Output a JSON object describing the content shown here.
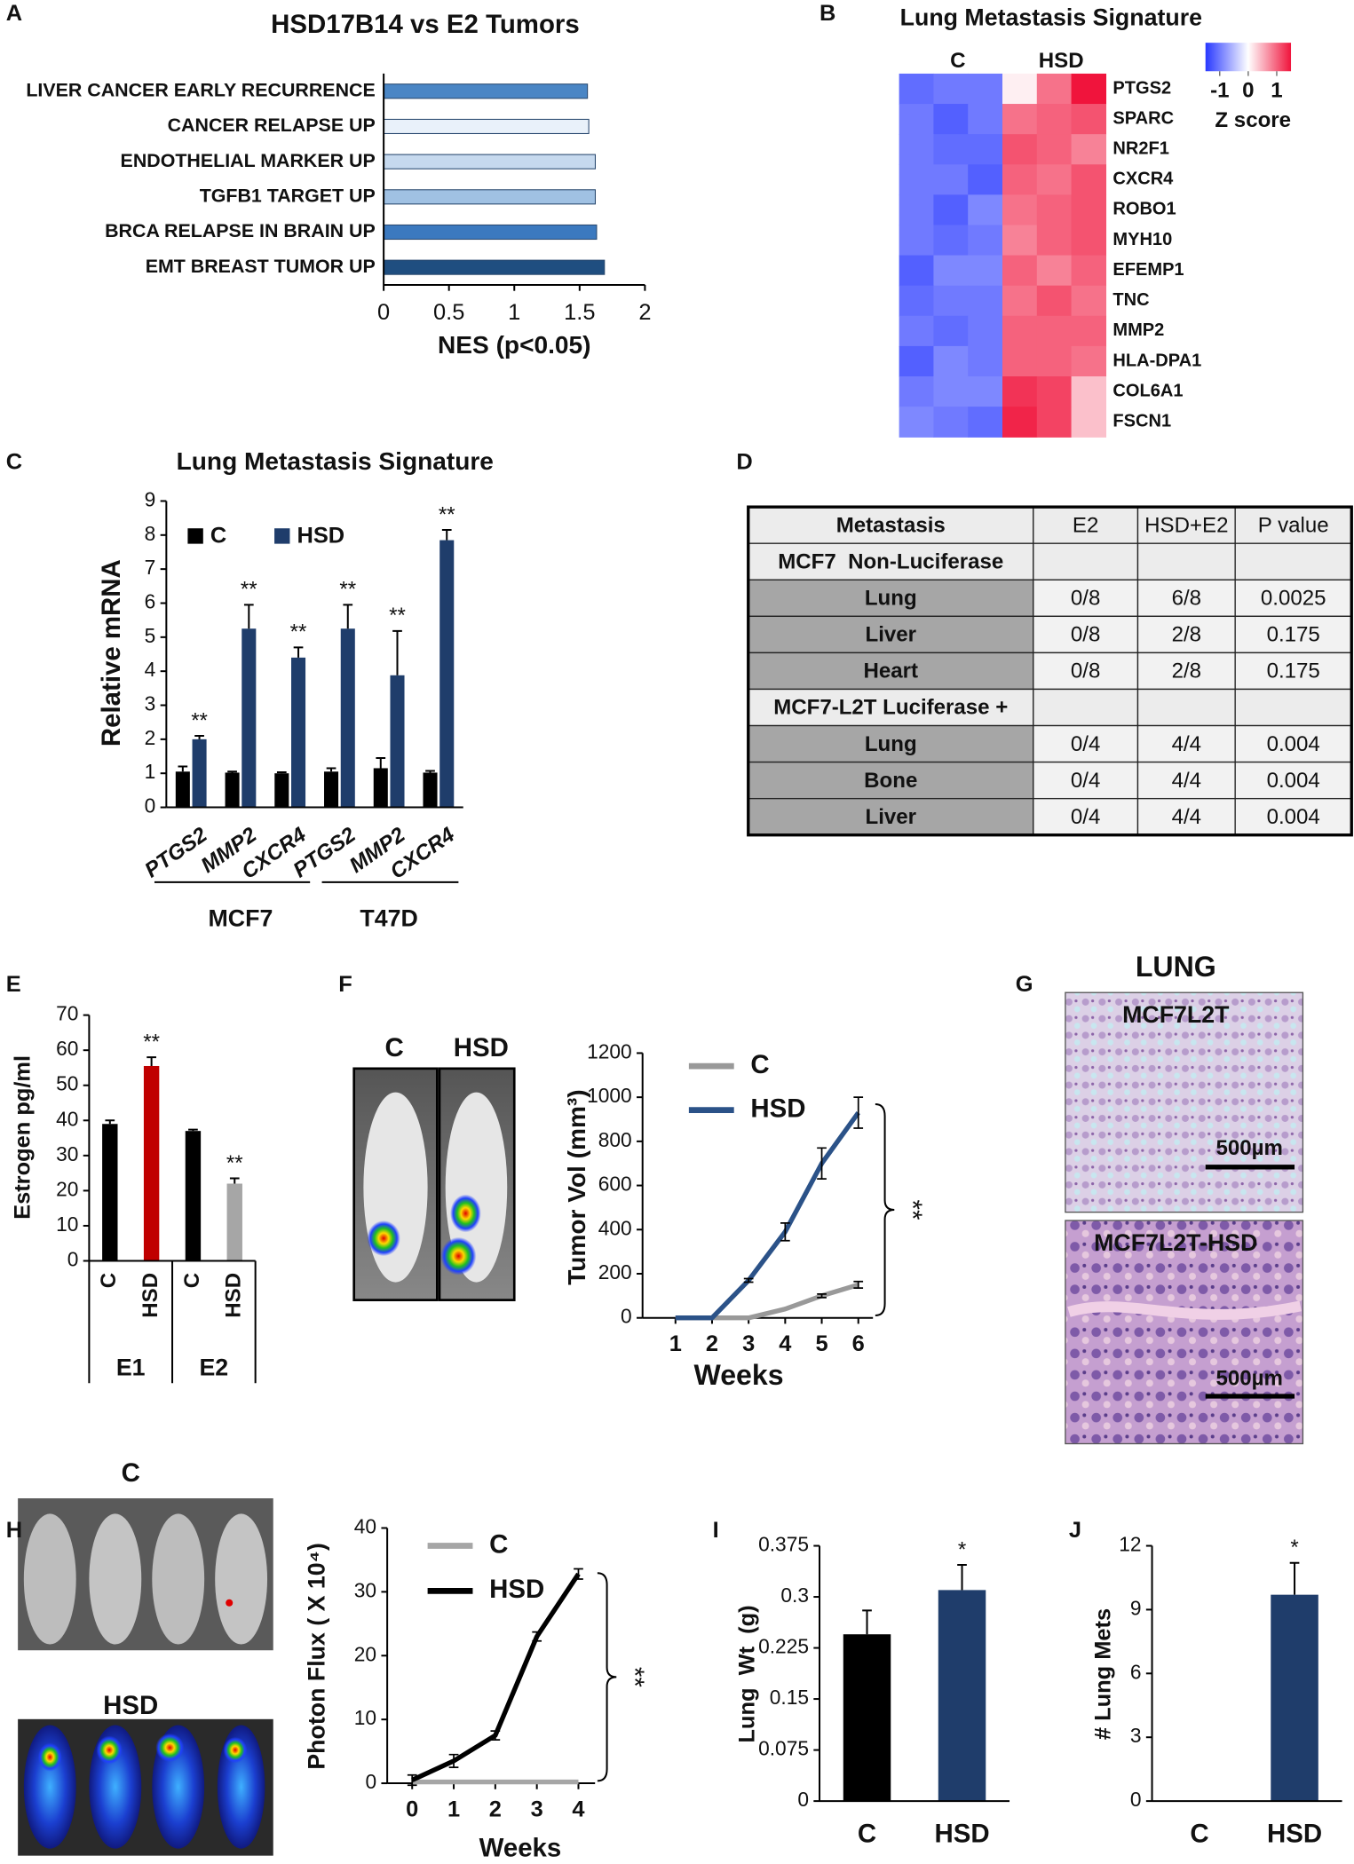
{
  "panels": [
    "A",
    "B",
    "C",
    "D",
    "E",
    "F",
    "G",
    "H",
    "I",
    "J"
  ],
  "chart_data": [
    {
      "type": "barh",
      "title": "HSD17B14 vs E2 Tumors",
      "categories": [
        "LIVER CANCER EARLY RECURRENCE",
        "CANCER RELAPSE UP",
        "ENDOTHELIAL MARKER UP",
        "TGFB1 TARGET UP",
        "BRCA RELAPSE IN BRAIN UP",
        "EMT BREAST TUMOR UP"
      ],
      "values": [
        1.56,
        1.57,
        1.62,
        1.62,
        1.63,
        1.69
      ],
      "colors": [
        "#4a86c5",
        "#e9f1fa",
        "#c6d9ee",
        "#a0c1e3",
        "#3b79bf",
        "#1f4e80"
      ],
      "xlim": [
        0,
        2
      ],
      "xticks": [
        0,
        0.5,
        1,
        1.5,
        2
      ],
      "x_label": "NES (p<0.05)"
    },
    {
      "type": "heatmap",
      "title": "Lung Metastasis Signature",
      "column_groups": [
        "C",
        "HSD"
      ],
      "rows": [
        "PTGS2",
        "SPARC",
        "NR2F1",
        "CXCR4",
        "ROBO1",
        "MYH10",
        "EFEMP1",
        "TNC",
        "MMP2",
        "HLA-DPA1",
        "COL6A1",
        "FSCN1"
      ],
      "values": [
        [
          -1.1,
          -1.0,
          -1.0,
          0.1,
          0.9,
          1.5
        ],
        [
          -1.0,
          -1.2,
          -1.0,
          0.9,
          1.0,
          1.1
        ],
        [
          -1.0,
          -1.1,
          -1.1,
          1.1,
          1.0,
          0.8
        ],
        [
          -1.0,
          -1.0,
          -1.2,
          1.0,
          0.9,
          1.1
        ],
        [
          -1.0,
          -1.2,
          -0.9,
          0.9,
          1.0,
          1.1
        ],
        [
          -1.0,
          -1.1,
          -1.0,
          0.8,
          1.0,
          1.1
        ],
        [
          -1.2,
          -0.9,
          -0.9,
          1.0,
          0.8,
          1.0
        ],
        [
          -1.1,
          -1.0,
          -1.0,
          0.9,
          1.1,
          0.9
        ],
        [
          -1.0,
          -1.1,
          -1.0,
          1.0,
          1.0,
          1.0
        ],
        [
          -1.2,
          -0.9,
          -1.0,
          1.0,
          1.0,
          0.9
        ],
        [
          -1.0,
          -0.9,
          -0.9,
          1.3,
          1.2,
          0.4
        ],
        [
          -0.9,
          -1.0,
          -1.1,
          1.4,
          1.2,
          0.4
        ]
      ],
      "clim": [
        -1.5,
        1.5
      ],
      "cticks": [
        -1,
        0,
        1
      ],
      "colorbar_label": "Z score",
      "colormap": [
        "#2838ff",
        "#ffffff",
        "#f0143c"
      ]
    },
    {
      "type": "bar",
      "title": "Lung Metastasis Signature",
      "categories": [
        "PTGS2",
        "MMP2",
        "CXCR4",
        "PTGS2",
        "MMP2",
        "CXCR4"
      ],
      "groups": [
        "MCF7",
        "T47D"
      ],
      "series": [
        {
          "name": "C",
          "color": "#000000",
          "values": [
            1.05,
            1.02,
            1.0,
            1.05,
            1.15,
            1.02
          ],
          "errors": [
            0.15,
            0.03,
            0.03,
            0.1,
            0.3,
            0.05
          ]
        },
        {
          "name": "HSD",
          "color": "#1f3d6b",
          "values": [
            2.0,
            5.25,
            4.4,
            5.25,
            3.88,
            7.85
          ],
          "errors": [
            0.1,
            0.7,
            0.3,
            0.7,
            1.3,
            0.3
          ],
          "annotations": [
            "**",
            "**",
            "**",
            "**",
            "**",
            "**"
          ]
        }
      ],
      "ylim": [
        0,
        9
      ],
      "yticks": [
        0,
        1,
        2,
        3,
        4,
        5,
        6,
        7,
        8,
        9
      ],
      "y_label": "Relative mRNA"
    },
    {
      "type": "bar",
      "categories": [
        "C",
        "HSD",
        "C",
        "HSD"
      ],
      "groups": [
        "E1",
        "E2"
      ],
      "values": [
        39,
        55.5,
        37,
        22
      ],
      "errors": [
        1,
        2.5,
        0.4,
        1.5
      ],
      "colors": [
        "#000000",
        "#c00000",
        "#000000",
        "#a6a6a6"
      ],
      "annotations": [
        null,
        "**",
        null,
        "**"
      ],
      "ylim": [
        0,
        70
      ],
      "yticks": [
        0,
        10,
        20,
        30,
        40,
        50,
        60,
        70
      ],
      "y_label": "Estrogen pg/ml"
    },
    {
      "type": "line",
      "x": [
        1,
        2,
        3,
        4,
        5,
        6
      ],
      "series": [
        {
          "name": "C",
          "color": "#999999",
          "values": [
            0,
            0,
            0,
            40,
            100,
            150
          ],
          "errors": [
            null,
            null,
            null,
            null,
            8,
            15
          ]
        },
        {
          "name": "HSD",
          "color": "#2b5288",
          "values": [
            0,
            0,
            170,
            390,
            700,
            930
          ],
          "errors": [
            null,
            null,
            8,
            40,
            70,
            70
          ]
        }
      ],
      "xlim": [
        0.1,
        6.4
      ],
      "xticks": [
        1,
        2,
        3,
        4,
        5,
        6
      ],
      "ylim": [
        0,
        1200
      ],
      "yticks": [
        0,
        200,
        400,
        600,
        800,
        1000,
        1200
      ],
      "x_label": "Weeks",
      "y_label": "Tumor Vol (mm³)",
      "annotation": "**"
    },
    {
      "type": "line",
      "x": [
        0,
        1,
        2,
        3,
        4
      ],
      "series": [
        {
          "name": "C",
          "color": "#a6a6a6",
          "values": [
            0.2,
            0.2,
            0.2,
            0.2,
            0.2
          ],
          "errors": [
            null,
            null,
            null,
            null,
            null
          ]
        },
        {
          "name": "HSD",
          "color": "#000000",
          "values": [
            0.5,
            3.5,
            7.5,
            23,
            32.8
          ],
          "errors": [
            0.8,
            1,
            0.7,
            0.7,
            0.8
          ]
        }
      ],
      "xlim": [
        -0.6,
        4.4
      ],
      "xticks": [
        0,
        1,
        2,
        3,
        4
      ],
      "ylim": [
        0,
        40
      ],
      "yticks": [
        0,
        10,
        20,
        30,
        40
      ],
      "x_label": "Weeks",
      "y_label": "Photon Flux ( X 10⁴)",
      "annotation": "**"
    },
    {
      "type": "bar",
      "categories": [
        "C",
        "HSD"
      ],
      "values": [
        0.245,
        0.31
      ],
      "errors": [
        0.035,
        0.037
      ],
      "colors": [
        "#000000",
        "#1f3d6b"
      ],
      "annotations": [
        null,
        "*"
      ],
      "ylim": [
        0,
        0.375
      ],
      "yticks": [
        0,
        0.075,
        0.15,
        0.225,
        0.3,
        0.375
      ],
      "y_label": "Lung  Wt  (g)"
    },
    {
      "type": "bar",
      "categories": [
        "C",
        "HSD"
      ],
      "values": [
        0,
        9.7
      ],
      "errors": [
        null,
        1.5
      ],
      "colors": [
        "#000000",
        "#1f3d6b"
      ],
      "annotations": [
        null,
        "*"
      ],
      "ylim": [
        0,
        12
      ],
      "yticks": [
        0,
        3,
        6,
        9,
        12
      ],
      "y_label": "# Lung Mets"
    }
  ],
  "table": {
    "header": [
      "Metastasis",
      "E2",
      "HSD+E2",
      "P value"
    ],
    "rows": [
      [
        "MCF7  Non-Luciferase"
      ],
      [
        "Lung",
        "0/8",
        "6/8",
        "0.0025"
      ],
      [
        "Liver",
        "0/8",
        "2/8",
        "0.175"
      ],
      [
        "Heart",
        "0/8",
        "2/8",
        "0.175"
      ],
      [
        "MCF7-L2T Luciferase +"
      ],
      [
        "Lung",
        "0/4",
        "4/4",
        "0.004"
      ],
      [
        "Bone",
        "0/4",
        "4/4",
        "0.004"
      ],
      [
        "Liver",
        "0/4",
        "4/4",
        "0.004"
      ]
    ]
  },
  "images": {
    "F": [
      "C",
      "HSD"
    ],
    "G": {
      "title": "LUNG",
      "labels": [
        "MCF7L2T",
        "MCF7L2T-HSD"
      ],
      "scale_bars": [
        "500µm",
        "500µm"
      ]
    },
    "H": [
      "C",
      "HSD"
    ]
  }
}
